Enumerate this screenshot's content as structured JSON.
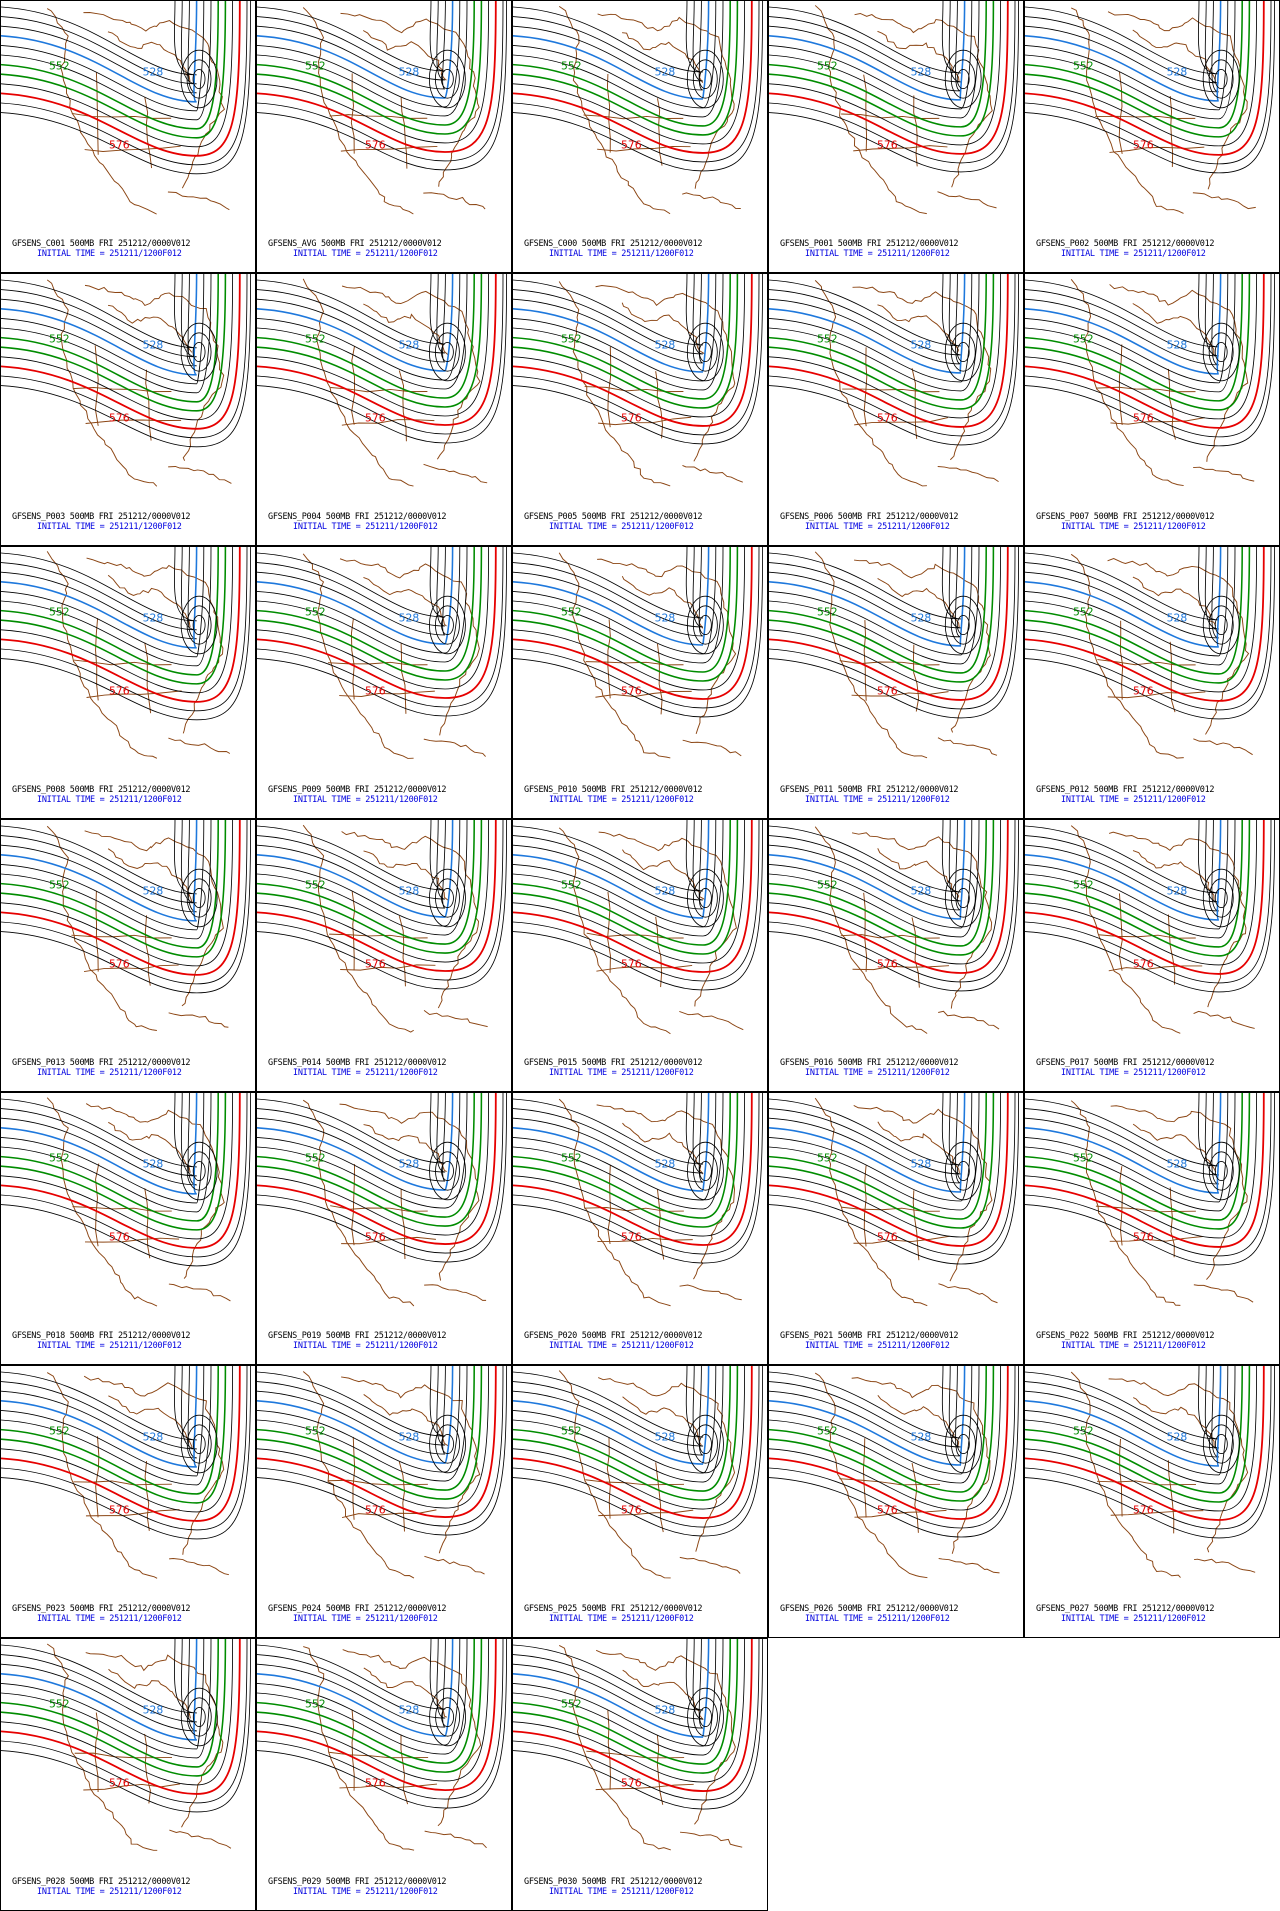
{
  "panels": [
    {
      "label": "GFSENS_C001 500MB FRI 251212/0000V012",
      "init": "INITIAL TIME = 251211/1200F012"
    },
    {
      "label": "GFSENS_AVG 500MB FRI 251212/0000V012",
      "init": "INITIAL TIME = 251211/1200F012"
    },
    {
      "label": "GFSENS_C000 500MB FRI 251212/0000V012",
      "init": "INITIAL TIME = 251211/1200F012"
    },
    {
      "label": "GFSENS_P001 500MB FRI 251212/0000V012",
      "init": "INITIAL TIME = 251211/1200F012"
    },
    {
      "label": "GFSENS_P002 500MB FRI 251212/0000V012",
      "init": "INITIAL TIME = 251211/1200F012"
    },
    {
      "label": "GFSENS_P003 500MB FRI 251212/0000V012",
      "init": "INITIAL TIME = 251211/1200F012"
    },
    {
      "label": "GFSENS_P004 500MB FRI 251212/0000V012",
      "init": "INITIAL TIME = 251211/1200F012"
    },
    {
      "label": "GFSENS_P005 500MB FRI 251212/0000V012",
      "init": "INITIAL TIME = 251211/1200F012"
    },
    {
      "label": "GFSENS_P006 500MB FRI 251212/0000V012",
      "init": "INITIAL TIME = 251211/1200F012"
    },
    {
      "label": "GFSENS_P007 500MB FRI 251212/0000V012",
      "init": "INITIAL TIME = 251211/1200F012"
    },
    {
      "label": "GFSENS_P008 500MB FRI 251212/0000V012",
      "init": "INITIAL TIME = 251211/1200F012"
    },
    {
      "label": "GFSENS_P009 500MB FRI 251212/0000V012",
      "init": "INITIAL TIME = 251211/1200F012"
    },
    {
      "label": "GFSENS_P010 500MB FRI 251212/0000V012",
      "init": "INITIAL TIME = 251211/1200F012"
    },
    {
      "label": "GFSENS_P011 500MB FRI 251212/0000V012",
      "init": "INITIAL TIME = 251211/1200F012"
    },
    {
      "label": "GFSENS_P012 500MB FRI 251212/0000V012",
      "init": "INITIAL TIME = 251211/1200F012"
    },
    {
      "label": "GFSENS_P013 500MB FRI 251212/0000V012",
      "init": "INITIAL TIME = 251211/1200F012"
    },
    {
      "label": "GFSENS_P014 500MB FRI 251212/0000V012",
      "init": "INITIAL TIME = 251211/1200F012"
    },
    {
      "label": "GFSENS_P015 500MB FRI 251212/0000V012",
      "init": "INITIAL TIME = 251211/1200F012"
    },
    {
      "label": "GFSENS_P016 500MB FRI 251212/0000V012",
      "init": "INITIAL TIME = 251211/1200F012"
    },
    {
      "label": "GFSENS_P017 500MB FRI 251212/0000V012",
      "init": "INITIAL TIME = 251211/1200F012"
    },
    {
      "label": "GFSENS_P018 500MB FRI 251212/0000V012",
      "init": "INITIAL TIME = 251211/1200F012"
    },
    {
      "label": "GFSENS_P019 500MB FRI 251212/0000V012",
      "init": "INITIAL TIME = 251211/1200F012"
    },
    {
      "label": "GFSENS_P020 500MB FRI 251212/0000V012",
      "init": "INITIAL TIME = 251211/1200F012"
    },
    {
      "label": "GFSENS_P021 500MB FRI 251212/0000V012",
      "init": "INITIAL TIME = 251211/1200F012"
    },
    {
      "label": "GFSENS_P022 500MB FRI 251212/0000V012",
      "init": "INITIAL TIME = 251211/1200F012"
    },
    {
      "label": "GFSENS_P023 500MB FRI 251212/0000V012",
      "init": "INITIAL TIME = 251211/1200F012"
    },
    {
      "label": "GFSENS_P024 500MB FRI 251212/0000V012",
      "init": "INITIAL TIME = 251211/1200F012"
    },
    {
      "label": "GFSENS_P025 500MB FRI 251212/0000V012",
      "init": "INITIAL TIME = 251211/1200F012"
    },
    {
      "label": "GFSENS_P026 500MB FRI 251212/0000V012",
      "init": "INITIAL TIME = 251211/1200F012"
    },
    {
      "label": "GFSENS_P027 500MB FRI 251212/0000V012",
      "init": "INITIAL TIME = 251211/1200F012"
    },
    {
      "label": "GFSENS_P028 500MB FRI 251212/0000V012",
      "init": "INITIAL TIME = 251211/1200F012"
    },
    {
      "label": "GFSENS_P029 500MB FRI 251212/0000V012",
      "init": "INITIAL TIME = 251211/1200F012"
    },
    {
      "label": "GFSENS_P030 500MB FRI 251212/0000V012",
      "init": "INITIAL TIME = 251211/1200F012"
    }
  ],
  "contour_labels": {
    "blue": "528",
    "green": "552",
    "red": "576"
  }
}
